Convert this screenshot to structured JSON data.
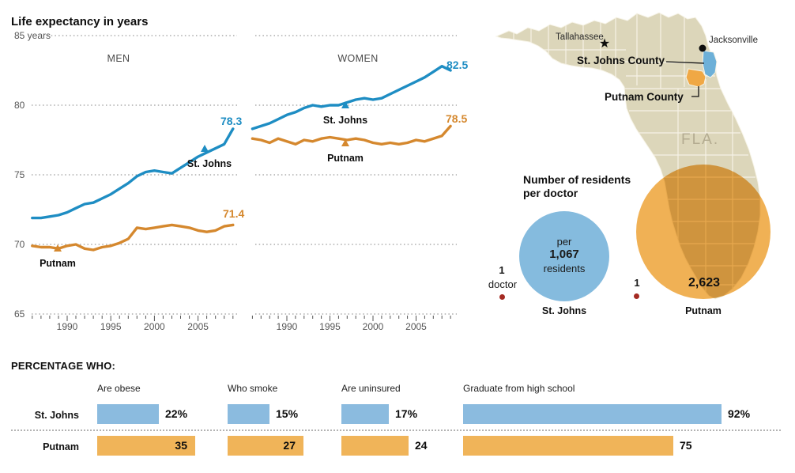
{
  "title": "Life expectancy in years",
  "colors": {
    "stjohns_line": "#1e8dc3",
    "putnam_line": "#d5882e",
    "stjohns_bar": "#8bbbdf",
    "putnam_bar": "#f0b459",
    "stjohns_bubble": "#85bbde",
    "putnam_bubble": "#f0b155",
    "map_land": "#dcd6ba",
    "map_border": "#f7f4e8",
    "stjohns_county": "#6db0d8",
    "putnam_county": "#f0a845",
    "doctor_dot": "#a42a22",
    "grid": "#9a9a9a",
    "fla_text": "#b3ab90"
  },
  "chart_data": [
    {
      "type": "line",
      "title": "MEN",
      "ylim": [
        65,
        85
      ],
      "y_tick_labels": [
        "85 years",
        "80",
        "75",
        "70",
        "65"
      ],
      "y_tick_values": [
        85,
        80,
        75,
        70,
        65
      ],
      "x_tick_labels": [
        "1990",
        "1995",
        "2000",
        "2005"
      ],
      "x_tick_values": [
        1990,
        1995,
        2000,
        2005
      ],
      "x": [
        1986,
        1987,
        1988,
        1989,
        1990,
        1991,
        1992,
        1993,
        1994,
        1995,
        1996,
        1997,
        1998,
        1999,
        2000,
        2001,
        2002,
        2003,
        2004,
        2005,
        2006,
        2007,
        2008,
        2009
      ],
      "series": [
        {
          "name": "St. Johns",
          "color": "#1e8dc3",
          "end_label": "78.3",
          "values": [
            71.9,
            71.9,
            72.0,
            72.1,
            72.3,
            72.6,
            72.9,
            73.0,
            73.3,
            73.6,
            74.0,
            74.4,
            74.9,
            75.2,
            75.3,
            75.2,
            75.1,
            75.5,
            75.9,
            76.3,
            76.6,
            76.9,
            77.2,
            78.3
          ]
        },
        {
          "name": "Putnam",
          "color": "#d5882e",
          "end_label": "71.4",
          "values": [
            69.9,
            69.8,
            69.8,
            69.7,
            69.9,
            70.0,
            69.7,
            69.6,
            69.8,
            69.9,
            70.1,
            70.4,
            71.2,
            71.1,
            71.2,
            71.3,
            71.4,
            71.3,
            71.2,
            71.0,
            70.9,
            71.0,
            71.3,
            71.4
          ]
        }
      ]
    },
    {
      "type": "line",
      "title": "WOMEN",
      "ylim": [
        65,
        85
      ],
      "y_tick_values": [
        85,
        80,
        75,
        70,
        65
      ],
      "x_tick_labels": [
        "1990",
        "1995",
        "2000",
        "2005"
      ],
      "x_tick_values": [
        1990,
        1995,
        2000,
        2005
      ],
      "x": [
        1986,
        1987,
        1988,
        1989,
        1990,
        1991,
        1992,
        1993,
        1994,
        1995,
        1996,
        1997,
        1998,
        1999,
        2000,
        2001,
        2002,
        2003,
        2004,
        2005,
        2006,
        2007,
        2008,
        2009
      ],
      "series": [
        {
          "name": "St. Johns",
          "color": "#1e8dc3",
          "end_label": "82.5",
          "values": [
            78.3,
            78.5,
            78.7,
            79.0,
            79.3,
            79.5,
            79.8,
            80.0,
            79.9,
            80.0,
            80.0,
            80.2,
            80.4,
            80.5,
            80.4,
            80.5,
            80.8,
            81.1,
            81.4,
            81.7,
            82.0,
            82.4,
            82.8,
            82.5
          ]
        },
        {
          "name": "Putnam",
          "color": "#d5882e",
          "end_label": "78.5",
          "values": [
            77.6,
            77.5,
            77.3,
            77.6,
            77.4,
            77.2,
            77.5,
            77.4,
            77.6,
            77.7,
            77.6,
            77.5,
            77.6,
            77.5,
            77.3,
            77.2,
            77.3,
            77.2,
            77.3,
            77.5,
            77.4,
            77.6,
            77.8,
            78.5
          ]
        }
      ]
    },
    {
      "type": "bubble",
      "title_lines": [
        "Number of residents",
        "per doctor"
      ],
      "items": [
        {
          "name": "St. Johns",
          "value": 1067,
          "display_lines": [
            "per",
            "1,067",
            "residents"
          ],
          "unit_label_lines": [
            "1",
            "doctor"
          ],
          "color": "#85bbde"
        },
        {
          "name": "Putnam",
          "value": 2623,
          "display": "2,623",
          "unit_label": "1",
          "color": "#f0b155"
        }
      ]
    },
    {
      "type": "bar",
      "title": "PERCENTAGE WHO:",
      "categories": [
        "Are obese",
        "Who smoke",
        "Are uninsured",
        "Graduate from high school"
      ],
      "series": [
        {
          "name": "St. Johns",
          "color": "#8bbbdf",
          "values": [
            22,
            15,
            17,
            92
          ],
          "display": [
            "22%",
            "15%",
            "17%",
            "92%"
          ]
        },
        {
          "name": "Putnam",
          "color": "#f0b459",
          "values": [
            35,
            27,
            24,
            75
          ],
          "display": [
            "35",
            "27",
            "24",
            "75"
          ]
        }
      ]
    }
  ],
  "map": {
    "state_label": "FLA.",
    "cities": [
      {
        "name": "Tallahassee",
        "marker": "star"
      },
      {
        "name": "Jacksonville",
        "marker": "dot"
      }
    ],
    "counties": [
      {
        "name": "St. Johns County",
        "color": "#6db0d8"
      },
      {
        "name": "Putnam County",
        "color": "#f0a845"
      }
    ]
  }
}
